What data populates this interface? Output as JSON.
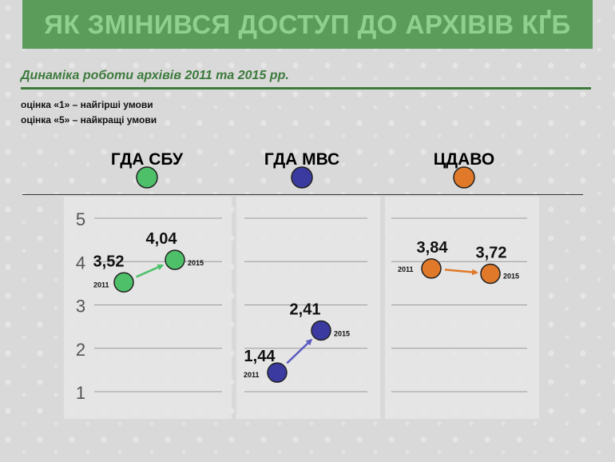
{
  "title": "ЯК ЗМІНИВСЯ ДОСТУП ДО АРХІВІВ КҐБ",
  "subtitle": "Динаміка роботи архівів 2011 та 2015 рр.",
  "notes": [
    "оцінка «1» – найгірші умови",
    "оцінка «5» – найкращі умови"
  ],
  "chart_data": {
    "type": "scatter",
    "y_ticks": [
      "1",
      "2",
      "3",
      "4",
      "5"
    ],
    "ylim": [
      1,
      5
    ],
    "series": [
      {
        "name": "ГДА СБУ",
        "color": "#4fc06a",
        "arrow_color": "#4fc06a",
        "points": [
          {
            "year": "2011",
            "value": 3.52,
            "label": "3,52"
          },
          {
            "year": "2015",
            "value": 4.04,
            "label": "4,04"
          }
        ]
      },
      {
        "name": "ГДА МВС",
        "color": "#3a3aa0",
        "arrow_color": "#5a5ac0",
        "points": [
          {
            "year": "2011",
            "value": 1.44,
            "label": "1,44"
          },
          {
            "year": "2015",
            "value": 2.41,
            "label": "2,41"
          }
        ]
      },
      {
        "name": "ЦДАВО",
        "color": "#e07a2a",
        "arrow_color": "#e07a2a",
        "points": [
          {
            "year": "2011",
            "value": 3.84,
            "label": "3,84"
          },
          {
            "year": "2015",
            "value": 3.72,
            "label": "3,72"
          }
        ]
      }
    ]
  }
}
